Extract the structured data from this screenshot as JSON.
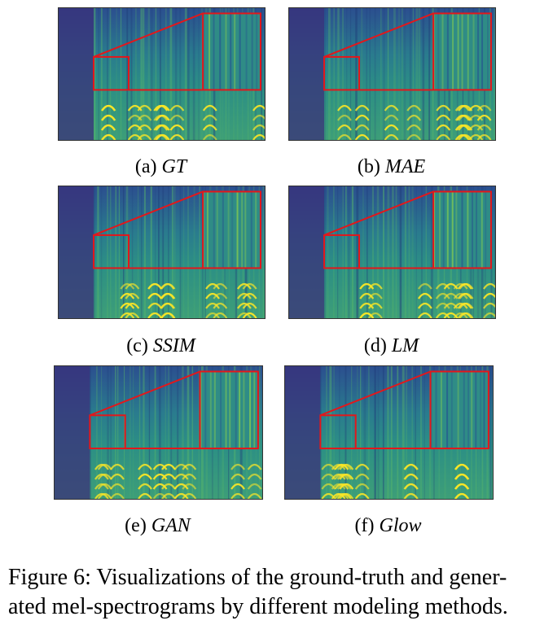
{
  "panels": [
    {
      "letter": "(a)",
      "method": "GT"
    },
    {
      "letter": "(b)",
      "method": "MAE"
    },
    {
      "letter": "(c)",
      "method": "SSIM"
    },
    {
      "letter": "(d)",
      "method": "LM"
    },
    {
      "letter": "(e)",
      "method": "GAN"
    },
    {
      "letter": "(f)",
      "method": "Glow"
    }
  ],
  "caption": {
    "line1": "Figure 6: Visualizations of the ground-truth and gener-",
    "line2": "ated mel-spectrograms by different modeling methods."
  },
  "colors": {
    "highlight": "#e3171b",
    "colormap_low": "#3b2f7a",
    "colormap_mid": "#21918c",
    "colormap_high": "#fde725"
  }
}
